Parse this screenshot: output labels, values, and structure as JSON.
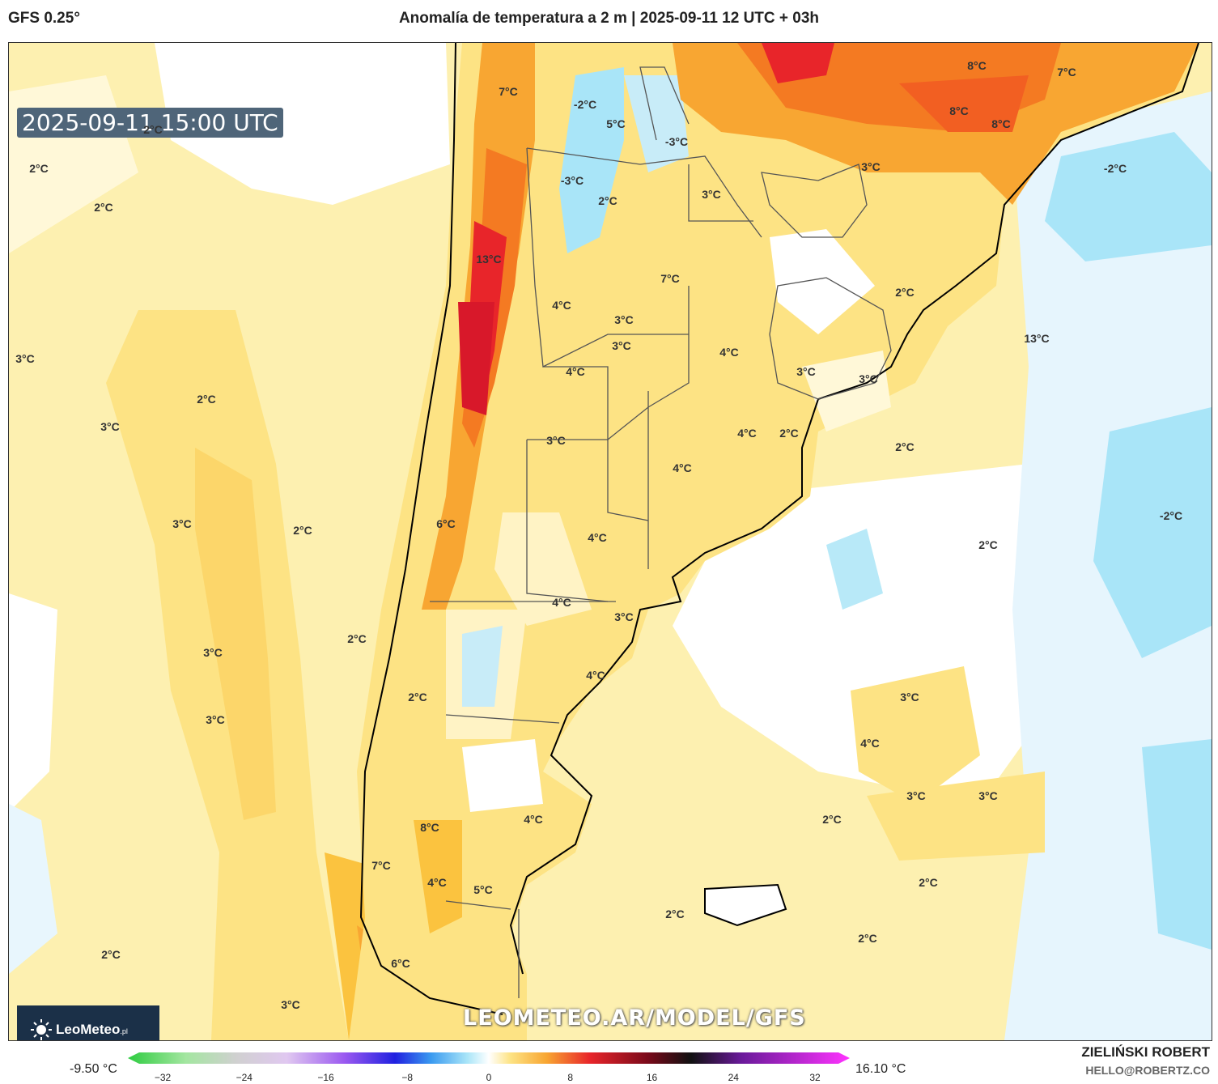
{
  "header": {
    "model": "GFS 0.25°",
    "title": "Anomalía de temperatura a 2 m | 2025-09-11 12 UTC + 03h"
  },
  "map": {
    "timestamp": "2025-09-11 15:00 UTC",
    "watermark": "LEOMETEO.AR/MODEL/GFS",
    "logo": {
      "brand": "LeoMeteo",
      "suffix": ".pl"
    },
    "labels": [
      {
        "text": "7°C"
      },
      {
        "text": "-2°C"
      },
      {
        "text": "5°C"
      },
      {
        "text": "-3°C"
      },
      {
        "text": "8°C"
      },
      {
        "text": "7°C"
      },
      {
        "text": "8°C"
      },
      {
        "text": "8°C"
      },
      {
        "text": "-2°C"
      },
      {
        "text": "2°C"
      },
      {
        "text": "2°C"
      },
      {
        "text": "2°C"
      },
      {
        "text": "-3°C"
      },
      {
        "text": "2°C"
      },
      {
        "text": "3°C"
      },
      {
        "text": "3°C"
      },
      {
        "text": "13°C"
      },
      {
        "text": "7°C"
      },
      {
        "text": "2°C"
      },
      {
        "text": "4°C"
      },
      {
        "text": "3°C"
      },
      {
        "text": "3°C"
      },
      {
        "text": "4°C"
      },
      {
        "text": "13°C"
      },
      {
        "text": "4°C"
      },
      {
        "text": "3°C"
      },
      {
        "text": "3°C"
      },
      {
        "text": "2°C"
      },
      {
        "text": "3°C"
      },
      {
        "text": "3°C"
      },
      {
        "text": "3°C"
      },
      {
        "text": "4°C"
      },
      {
        "text": "2°C"
      },
      {
        "text": "2°C"
      },
      {
        "text": "4°C"
      },
      {
        "text": "-2°C"
      },
      {
        "text": "3°C"
      },
      {
        "text": "2°C"
      },
      {
        "text": "6°C"
      },
      {
        "text": "4°C"
      },
      {
        "text": "2°C"
      },
      {
        "text": "4°C"
      },
      {
        "text": "3°C"
      },
      {
        "text": "2°C"
      },
      {
        "text": "3°C"
      },
      {
        "text": "4°C"
      },
      {
        "text": "2°C"
      },
      {
        "text": "3°C"
      },
      {
        "text": "3°C"
      },
      {
        "text": "4°C"
      },
      {
        "text": "3°C"
      },
      {
        "text": "3°C"
      },
      {
        "text": "2°C"
      },
      {
        "text": "4°C"
      },
      {
        "text": "8°C"
      },
      {
        "text": "7°C"
      },
      {
        "text": "4°C"
      },
      {
        "text": "5°C"
      },
      {
        "text": "2°C"
      },
      {
        "text": "2°C"
      },
      {
        "text": "2°C"
      },
      {
        "text": "2°C"
      },
      {
        "text": "6°C"
      },
      {
        "text": "3°C"
      }
    ]
  },
  "colorbar": {
    "min_label": "-9.50 °C",
    "max_label": "16.10 °C",
    "ticks": [
      {
        "text": "−32",
        "value": -32
      },
      {
        "text": "−24",
        "value": -24
      },
      {
        "text": "−16",
        "value": -16
      },
      {
        "text": "−8",
        "value": -8
      },
      {
        "text": "0",
        "value": 0
      },
      {
        "text": "8",
        "value": 8
      },
      {
        "text": "16",
        "value": 16
      },
      {
        "text": "24",
        "value": 24
      },
      {
        "text": "32",
        "value": 32
      }
    ],
    "range": [
      -32,
      32
    ]
  },
  "footer": {
    "author": "ZIELIŃSKI ROBERT",
    "email": "HELLO@ROBERTZ.CO"
  }
}
